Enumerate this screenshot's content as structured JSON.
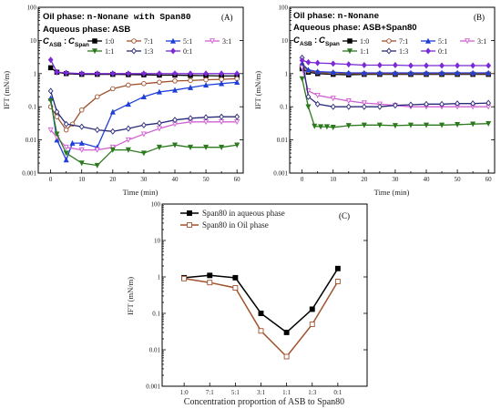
{
  "chart_data": [
    {
      "type": "line",
      "panel_label": "(A)",
      "heading": {
        "oil_prefix": "Oil phase: ",
        "oil_value": "n-Nonane with Span80",
        "aqueous": "Aqueous phase: ASB",
        "ratio_label": "C_ASB : C_Span",
        "ratio_c": "C",
        "ratio_sub1": "ASB",
        "ratio_colon": ":",
        "ratio_sub2": "Span"
      },
      "xlabel": "Time (min)",
      "ylabel": "IFT (mN/m)",
      "xlim": [
        -4,
        62
      ],
      "ylim": [
        0.001,
        100
      ],
      "xticks": [
        "0",
        "10",
        "20",
        "30",
        "40",
        "50",
        "60"
      ],
      "yticks": [
        "0.001",
        "0.01",
        "0.1",
        "1",
        "10",
        "100"
      ],
      "log_y": true,
      "series": [
        {
          "name": "1:0",
          "color": "#000000",
          "marker": "square-filled",
          "x": [
            0,
            2,
            5,
            10,
            15,
            20,
            25,
            30,
            35,
            40,
            45,
            50,
            55,
            60
          ],
          "y": [
            1.5,
            1.1,
            1.0,
            0.95,
            0.95,
            0.95,
            0.93,
            0.92,
            0.9,
            0.9,
            0.88,
            0.87,
            0.85,
            0.85
          ]
        },
        {
          "name": "7:1",
          "color": "#a0522d",
          "marker": "circle-open",
          "x": [
            0,
            2,
            5,
            7,
            10,
            15,
            20,
            25,
            30,
            35,
            40,
            45,
            50,
            55,
            60
          ],
          "y": [
            0.1,
            0.05,
            0.02,
            0.03,
            0.08,
            0.2,
            0.35,
            0.45,
            0.5,
            0.55,
            0.6,
            0.62,
            0.65,
            0.67,
            0.7
          ]
        },
        {
          "name": "5:1",
          "color": "#1f3fd8",
          "marker": "triangle-filled",
          "x": [
            0,
            2,
            5,
            7,
            10,
            15,
            20,
            25,
            30,
            35,
            40,
            45,
            50,
            55,
            60
          ],
          "y": [
            0.18,
            0.01,
            0.0025,
            0.008,
            0.008,
            0.006,
            0.07,
            0.12,
            0.2,
            0.28,
            0.32,
            0.38,
            0.45,
            0.5,
            0.55
          ]
        },
        {
          "name": "3:1",
          "color": "#d261d2",
          "marker": "triangle-down-open",
          "x": [
            0,
            2,
            5,
            10,
            15,
            20,
            25,
            30,
            35,
            40,
            45,
            50,
            55,
            60
          ],
          "y": [
            0.02,
            0.012,
            0.006,
            0.005,
            0.005,
            0.006,
            0.01,
            0.015,
            0.022,
            0.03,
            0.035,
            0.035,
            0.035,
            0.035
          ]
        },
        {
          "name": "1:1",
          "color": "#2d7a1e",
          "marker": "triangle-down-filled",
          "x": [
            0,
            2,
            5,
            10,
            15,
            20,
            25,
            30,
            35,
            40,
            45,
            50,
            55,
            60
          ],
          "y": [
            0.15,
            0.015,
            0.004,
            0.002,
            0.0017,
            0.005,
            0.005,
            0.004,
            0.006,
            0.007,
            0.006,
            0.006,
            0.006,
            0.007
          ]
        },
        {
          "name": "1:3",
          "color": "#2a2a7a",
          "marker": "diamond-open",
          "x": [
            0,
            2,
            5,
            10,
            15,
            20,
            25,
            30,
            35,
            40,
            45,
            50,
            55,
            60
          ],
          "y": [
            0.3,
            0.07,
            0.03,
            0.025,
            0.02,
            0.018,
            0.022,
            0.028,
            0.032,
            0.04,
            0.045,
            0.048,
            0.05,
            0.05
          ]
        },
        {
          "name": "0:1",
          "color": "#7a2bd6",
          "marker": "diamond-filled",
          "x": [
            0,
            2,
            5,
            10,
            15,
            20,
            25,
            30,
            35,
            40,
            45,
            50,
            55,
            60
          ],
          "y": [
            2.6,
            1.1,
            1.05,
            1.0,
            1.0,
            1.0,
            1.0,
            1.0,
            1.0,
            1.0,
            1.0,
            1.0,
            1.0,
            1.0
          ]
        }
      ]
    },
    {
      "type": "line",
      "panel_label": "(B)",
      "heading": {
        "oil_prefix": "Oil phase: ",
        "oil_value": "n-Nonane",
        "aqueous": "Aqueous phase:  ASB+Span80",
        "ratio_label": "C_ASB : C_Span",
        "ratio_c": "C",
        "ratio_sub1": "ASB",
        "ratio_colon": ":",
        "ratio_sub2": "Span"
      },
      "xlabel": "Time (min)",
      "ylabel": "IFT (mN/m)",
      "xlim": [
        -4,
        62
      ],
      "ylim": [
        0.001,
        100
      ],
      "xticks": [
        "0",
        "10",
        "20",
        "30",
        "40",
        "50",
        "60"
      ],
      "yticks": [
        "0.001",
        "0.01",
        "0.1",
        "1",
        "10",
        "100"
      ],
      "log_y": true,
      "series": [
        {
          "name": "1:0",
          "color": "#000000",
          "marker": "square-filled",
          "x": [
            0,
            2,
            5,
            10,
            15,
            20,
            25,
            30,
            35,
            40,
            45,
            50,
            55,
            60
          ],
          "y": [
            1.4,
            1.1,
            1.0,
            0.95,
            0.92,
            0.95,
            0.95,
            0.95,
            0.95,
            0.95,
            0.95,
            0.95,
            0.95,
            0.95
          ]
        },
        {
          "name": "7:1",
          "color": "#a0522d",
          "marker": "circle-open",
          "x": [
            0,
            2,
            5,
            10,
            15,
            20,
            25,
            30,
            35,
            40,
            45,
            50,
            55,
            60
          ],
          "y": [
            1.8,
            1.2,
            1.1,
            1.05,
            1.0,
            1.0,
            1.0,
            1.0,
            1.0,
            1.0,
            1.0,
            1.0,
            1.0,
            1.0
          ]
        },
        {
          "name": "5:1",
          "color": "#1f3fd8",
          "marker": "triangle-filled",
          "x": [
            0,
            2,
            5,
            10,
            15,
            20,
            25,
            30,
            35,
            40,
            45,
            50,
            55,
            60
          ],
          "y": [
            2.0,
            1.3,
            1.15,
            1.1,
            1.05,
            1.05,
            1.05,
            1.05,
            1.05,
            1.05,
            1.05,
            1.05,
            1.05,
            1.05
          ]
        },
        {
          "name": "3:1",
          "color": "#d261d2",
          "marker": "triangle-down-open",
          "x": [
            0,
            2,
            5,
            10,
            15,
            20,
            25,
            30,
            35,
            40,
            45,
            50,
            55,
            60
          ],
          "y": [
            1.5,
            0.3,
            0.22,
            0.18,
            0.15,
            0.13,
            0.12,
            0.11,
            0.1,
            0.1,
            0.1,
            0.1,
            0.1,
            0.1
          ]
        },
        {
          "name": "1:1",
          "color": "#2d7a1e",
          "marker": "triangle-down-filled",
          "x": [
            0,
            2,
            4,
            6,
            8,
            10,
            15,
            20,
            25,
            30,
            35,
            40,
            45,
            50,
            55,
            60
          ],
          "y": [
            0.7,
            0.1,
            0.026,
            0.025,
            0.025,
            0.024,
            0.027,
            0.028,
            0.028,
            0.027,
            0.028,
            0.028,
            0.028,
            0.029,
            0.03,
            0.031
          ]
        },
        {
          "name": "1:3",
          "color": "#2a2a7a",
          "marker": "diamond-open",
          "x": [
            0,
            2,
            5,
            10,
            15,
            20,
            25,
            30,
            35,
            40,
            45,
            50,
            55,
            60
          ],
          "y": [
            3.0,
            0.2,
            0.12,
            0.1,
            0.1,
            0.1,
            0.1,
            0.11,
            0.115,
            0.12,
            0.12,
            0.125,
            0.125,
            0.13
          ]
        },
        {
          "name": "0:1",
          "color": "#7a2bd6",
          "marker": "diamond-filled",
          "x": [
            0,
            2,
            5,
            10,
            15,
            20,
            25,
            30,
            35,
            40,
            45,
            50,
            55,
            60
          ],
          "y": [
            2.5,
            2.2,
            2.1,
            2.0,
            1.9,
            1.8,
            1.8,
            1.8,
            1.75,
            1.75,
            1.75,
            1.75,
            1.75,
            1.75
          ]
        }
      ]
    },
    {
      "type": "line",
      "panel_label": "(C)",
      "xlabel": "Concentration proportion of ASB to Span80",
      "ylabel": "IFT (mN/m)",
      "categories": [
        "1:0",
        "7:1",
        "5:1",
        "3:1",
        "1:1",
        "1:3",
        "0:1"
      ],
      "ylim": [
        0.001,
        100
      ],
      "yticks": [
        "0.001",
        "0.01",
        "0.1",
        "1",
        "10",
        "100"
      ],
      "log_y": true,
      "series": [
        {
          "name": "Span80 in aqueous phase",
          "color": "#000000",
          "marker": "square-filled",
          "values": [
            0.95,
            1.1,
            0.95,
            0.1,
            0.03,
            0.13,
            1.7
          ]
        },
        {
          "name": "Span80 in Oil phase",
          "color": "#a0522d",
          "marker": "square-open",
          "values": [
            0.9,
            0.7,
            0.5,
            0.033,
            0.0065,
            0.05,
            0.75
          ]
        }
      ]
    }
  ]
}
